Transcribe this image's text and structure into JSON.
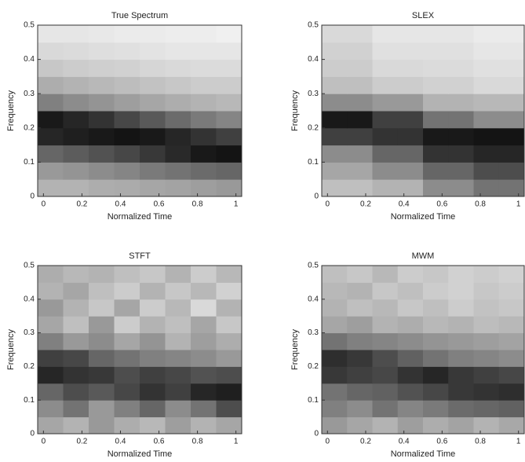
{
  "chart_data": [
    {
      "type": "heatmap",
      "title": "True Spectrum",
      "xlabel": "Normalized Time",
      "ylabel": "Frequency",
      "xlim": [
        -0.03,
        1.03
      ],
      "ylim": [
        0,
        0.5
      ],
      "xticks": [
        0,
        0.2,
        0.4,
        0.6,
        0.8,
        1
      ],
      "yticks": [
        0,
        0.1,
        0.2,
        0.3,
        0.4,
        0.5
      ],
      "z": [
        [
          0.3,
          0.3,
          0.32,
          0.33,
          0.35,
          0.36,
          0.38,
          0.4
        ],
        [
          0.4,
          0.42,
          0.45,
          0.48,
          0.52,
          0.55,
          0.58,
          0.6
        ],
        [
          0.6,
          0.64,
          0.68,
          0.72,
          0.78,
          0.84,
          0.9,
          0.92
        ],
        [
          0.85,
          0.88,
          0.9,
          0.92,
          0.9,
          0.85,
          0.8,
          0.75
        ],
        [
          0.9,
          0.85,
          0.8,
          0.72,
          0.65,
          0.58,
          0.52,
          0.48
        ],
        [
          0.5,
          0.45,
          0.42,
          0.38,
          0.35,
          0.32,
          0.3,
          0.28
        ],
        [
          0.32,
          0.3,
          0.28,
          0.26,
          0.24,
          0.22,
          0.2,
          0.2
        ],
        [
          0.22,
          0.2,
          0.19,
          0.18,
          0.16,
          0.15,
          0.14,
          0.14
        ],
        [
          0.15,
          0.14,
          0.13,
          0.12,
          0.11,
          0.1,
          0.1,
          0.1
        ],
        [
          0.1,
          0.1,
          0.09,
          0.08,
          0.08,
          0.07,
          0.07,
          0.06
        ]
      ]
    },
    {
      "type": "heatmap",
      "title": "SLEX",
      "xlabel": "Normalized Time",
      "ylabel": "Frequency",
      "xlim": [
        -0.03,
        1.03
      ],
      "ylim": [
        0,
        0.5
      ],
      "xticks": [
        0,
        0.2,
        0.4,
        0.6,
        0.8,
        1
      ],
      "yticks": [
        0,
        0.1,
        0.2,
        0.3,
        0.4,
        0.5
      ],
      "z": [
        [
          0.25,
          0.25,
          0.3,
          0.3,
          0.45,
          0.45,
          0.55,
          0.55
        ],
        [
          0.35,
          0.35,
          0.45,
          0.45,
          0.6,
          0.6,
          0.7,
          0.7
        ],
        [
          0.45,
          0.45,
          0.6,
          0.6,
          0.8,
          0.8,
          0.85,
          0.85
        ],
        [
          0.75,
          0.75,
          0.8,
          0.8,
          0.9,
          0.9,
          0.92,
          0.92
        ],
        [
          0.9,
          0.9,
          0.75,
          0.75,
          0.55,
          0.55,
          0.45,
          0.45
        ],
        [
          0.45,
          0.45,
          0.4,
          0.4,
          0.3,
          0.3,
          0.28,
          0.28
        ],
        [
          0.25,
          0.25,
          0.2,
          0.2,
          0.18,
          0.18,
          0.15,
          0.15
        ],
        [
          0.2,
          0.2,
          0.15,
          0.15,
          0.14,
          0.14,
          0.12,
          0.12
        ],
        [
          0.18,
          0.18,
          0.12,
          0.12,
          0.12,
          0.12,
          0.1,
          0.1
        ],
        [
          0.15,
          0.15,
          0.1,
          0.1,
          0.1,
          0.1,
          0.08,
          0.08
        ]
      ]
    },
    {
      "type": "heatmap",
      "title": "STFT",
      "xlabel": "Normalized Time",
      "ylabel": "Frequency",
      "xlim": [
        -0.03,
        1.03
      ],
      "ylim": [
        0,
        0.5
      ],
      "xticks": [
        0,
        0.2,
        0.4,
        0.6,
        0.8,
        1
      ],
      "yticks": [
        0,
        0.1,
        0.2,
        0.3,
        0.4,
        0.5
      ],
      "z": [
        [
          0.35,
          0.3,
          0.4,
          0.32,
          0.28,
          0.38,
          0.3,
          0.35
        ],
        [
          0.45,
          0.55,
          0.4,
          0.5,
          0.6,
          0.45,
          0.55,
          0.7
        ],
        [
          0.6,
          0.7,
          0.65,
          0.72,
          0.8,
          0.75,
          0.85,
          0.88
        ],
        [
          0.85,
          0.8,
          0.78,
          0.7,
          0.75,
          0.72,
          0.68,
          0.7
        ],
        [
          0.75,
          0.72,
          0.6,
          0.55,
          0.5,
          0.48,
          0.45,
          0.4
        ],
        [
          0.5,
          0.4,
          0.45,
          0.35,
          0.42,
          0.3,
          0.38,
          0.32
        ],
        [
          0.35,
          0.25,
          0.4,
          0.2,
          0.3,
          0.25,
          0.35,
          0.22
        ],
        [
          0.4,
          0.3,
          0.22,
          0.35,
          0.2,
          0.28,
          0.15,
          0.3
        ],
        [
          0.3,
          0.35,
          0.25,
          0.2,
          0.3,
          0.22,
          0.28,
          0.18
        ],
        [
          0.32,
          0.28,
          0.3,
          0.25,
          0.22,
          0.3,
          0.2,
          0.28
        ]
      ]
    },
    {
      "type": "heatmap",
      "title": "MWM",
      "xlabel": "Normalized Time",
      "ylabel": "Frequency",
      "xlim": [
        -0.03,
        1.03
      ],
      "ylim": [
        0,
        0.5
      ],
      "xticks": [
        0,
        0.2,
        0.4,
        0.6,
        0.8,
        1
      ],
      "yticks": [
        0,
        0.1,
        0.2,
        0.3,
        0.4,
        0.5
      ],
      "z": [
        [
          0.4,
          0.35,
          0.3,
          0.38,
          0.32,
          0.36,
          0.3,
          0.34
        ],
        [
          0.5,
          0.45,
          0.55,
          0.48,
          0.52,
          0.58,
          0.6,
          0.62
        ],
        [
          0.55,
          0.6,
          0.62,
          0.68,
          0.72,
          0.78,
          0.8,
          0.82
        ],
        [
          0.78,
          0.75,
          0.72,
          0.8,
          0.85,
          0.78,
          0.75,
          0.72
        ],
        [
          0.82,
          0.78,
          0.7,
          0.62,
          0.55,
          0.5,
          0.48,
          0.45
        ],
        [
          0.55,
          0.5,
          0.48,
          0.45,
          0.42,
          0.4,
          0.38,
          0.36
        ],
        [
          0.35,
          0.38,
          0.3,
          0.32,
          0.28,
          0.3,
          0.26,
          0.28
        ],
        [
          0.3,
          0.25,
          0.28,
          0.22,
          0.25,
          0.2,
          0.24,
          0.22
        ],
        [
          0.28,
          0.3,
          0.22,
          0.25,
          0.2,
          0.18,
          0.22,
          0.2
        ],
        [
          0.25,
          0.22,
          0.28,
          0.2,
          0.22,
          0.18,
          0.2,
          0.18
        ]
      ]
    }
  ]
}
